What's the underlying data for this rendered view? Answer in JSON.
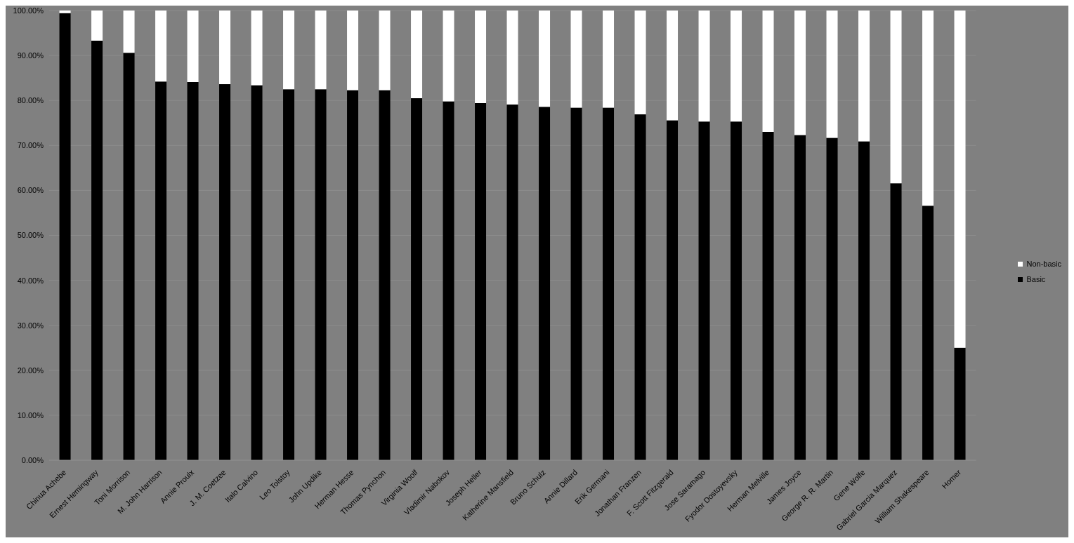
{
  "chart_data": {
    "type": "bar",
    "stacked": true,
    "categories": [
      "Chinua Achebe",
      "Ernest Hemingway",
      "Toni Morrison",
      "M. John Harrison",
      "Annie Proulx",
      "J. M. Coetzee",
      "Italo Calvino",
      "Leo Tolstoy",
      "John Updike",
      "Herman Hesse",
      "Thomas Pynchon",
      "Virginia Woolf",
      "Vladimir Nabokov",
      "Joseph Heller",
      "Katherine Mansfield",
      "Bruno Schulz",
      "Annie Dillard",
      "Erik Germani",
      "Jonathan Franzen",
      "F. Scott Fitzgerald",
      "Jose Saramago",
      "Fyodor Dostoyevsky",
      "Herman Melville",
      "James Joyce",
      "George R. R. Martin",
      "Gene Wolfe",
      "Gabriel Garcia Marquez",
      "William Shakespeare",
      "Homer"
    ],
    "series": [
      {
        "name": "Basic",
        "color": "#000000",
        "values": [
          99.4,
          93.3,
          90.6,
          84.2,
          84.1,
          83.6,
          83.4,
          82.5,
          82.5,
          82.3,
          82.3,
          80.5,
          79.8,
          79.4,
          79.1,
          78.6,
          78.4,
          78.4,
          76.9,
          75.6,
          75.3,
          75.3,
          73.0,
          72.3,
          71.7,
          70.9,
          61.6,
          56.6,
          25.0
        ]
      },
      {
        "name": "Non-basic",
        "color": "#ffffff",
        "values": [
          0.6,
          6.7,
          9.4,
          15.8,
          15.9,
          16.4,
          16.6,
          17.5,
          17.5,
          17.7,
          17.7,
          19.5,
          20.2,
          20.6,
          20.9,
          21.4,
          21.6,
          21.6,
          23.1,
          24.4,
          24.7,
          24.7,
          27.0,
          27.7,
          28.3,
          29.1,
          38.4,
          43.4,
          75.0
        ]
      }
    ],
    "ylim": [
      0,
      100
    ],
    "yticks": [
      {
        "value": 0,
        "label": "0.00%"
      },
      {
        "value": 10,
        "label": "10.00%"
      },
      {
        "value": 20,
        "label": "20.00%"
      },
      {
        "value": 30,
        "label": "30.00%"
      },
      {
        "value": 40,
        "label": "40.00%"
      },
      {
        "value": 50,
        "label": "50.00%"
      },
      {
        "value": 60,
        "label": "60.00%"
      },
      {
        "value": 70,
        "label": "70.00%"
      },
      {
        "value": 80,
        "label": "80.00%"
      },
      {
        "value": 90,
        "label": "90.00%"
      },
      {
        "value": 100,
        "label": "100.00%"
      }
    ],
    "grid": "y",
    "legend": "right"
  }
}
